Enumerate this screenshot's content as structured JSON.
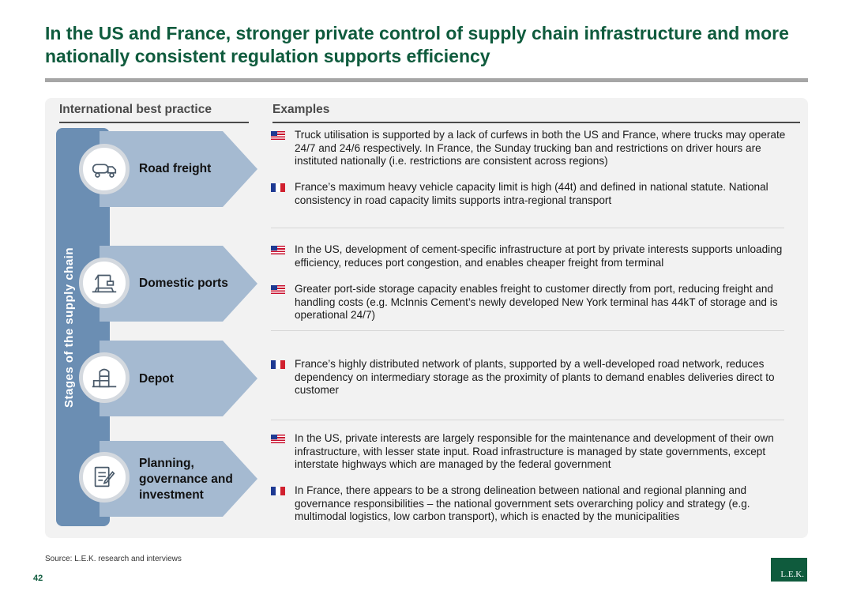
{
  "title": "In the US and France, stronger private control of supply chain infrastructure and more nationally consistent regulation supports efficiency",
  "headers": {
    "left": "International best practice",
    "right": "Examples"
  },
  "side_label": "Stages of the supply chain",
  "stages": [
    {
      "name": "Road freight",
      "icon": "truck-icon"
    },
    {
      "name": "Domestic ports",
      "icon": "port-crane-icon"
    },
    {
      "name": "Depot",
      "icon": "silo-icon"
    },
    {
      "name": "Planning, governance and investment",
      "icon": "document-pen-icon"
    }
  ],
  "examples": [
    {
      "flag": "us",
      "text": "Truck utilisation is supported by a lack of curfews in both the US and France, where trucks may operate 24/7 and 24/6 respectively. In France, the Sunday trucking ban and restrictions on driver hours are instituted nationally (i.e. restrictions are consistent across regions)"
    },
    {
      "flag": "fr",
      "text": "France’s maximum heavy vehicle capacity limit is high (44t) and defined in national statute. National consistency in road capacity limits supports intra-regional transport"
    },
    {
      "flag": "us",
      "text": "In the US, development of cement-specific infrastructure at port by private interests supports unloading efficiency, reduces port congestion, and enables cheaper freight from terminal"
    },
    {
      "flag": "us",
      "text": "Greater port-side storage capacity enables freight to customer directly from port, reducing freight and handling costs (e.g. McInnis Cement’s newly developed New York terminal has 44kT of storage and is operational 24/7)"
    },
    {
      "flag": "fr",
      "text": "France’s highly distributed network of plants, supported by a well-developed road network, reduces dependency on intermediary storage as the proximity of plants to demand enables deliveries direct to customer"
    },
    {
      "flag": "us",
      "text": "In the US, private interests are largely responsible for the maintenance and development of their own infrastructure, with lesser state input. Road infrastructure is managed by state governments, except interstate highways which are managed by the federal government"
    },
    {
      "flag": "fr",
      "text": "In France, there appears to be a strong delineation between national and regional planning and governance responsibilities – the national government sets overarching policy and strategy (e.g. multimodal logistics, low carbon transport), which is enacted by the municipalities"
    }
  ],
  "source": "Source:  L.E.K. research and interviews",
  "page_number": "42",
  "logo_text": "L.E.K.",
  "colors": {
    "title": "#0f5b3d",
    "stage_bar": "#6b8eb3",
    "arrow": "#a5bad1",
    "panel": "#f2f2f2"
  }
}
